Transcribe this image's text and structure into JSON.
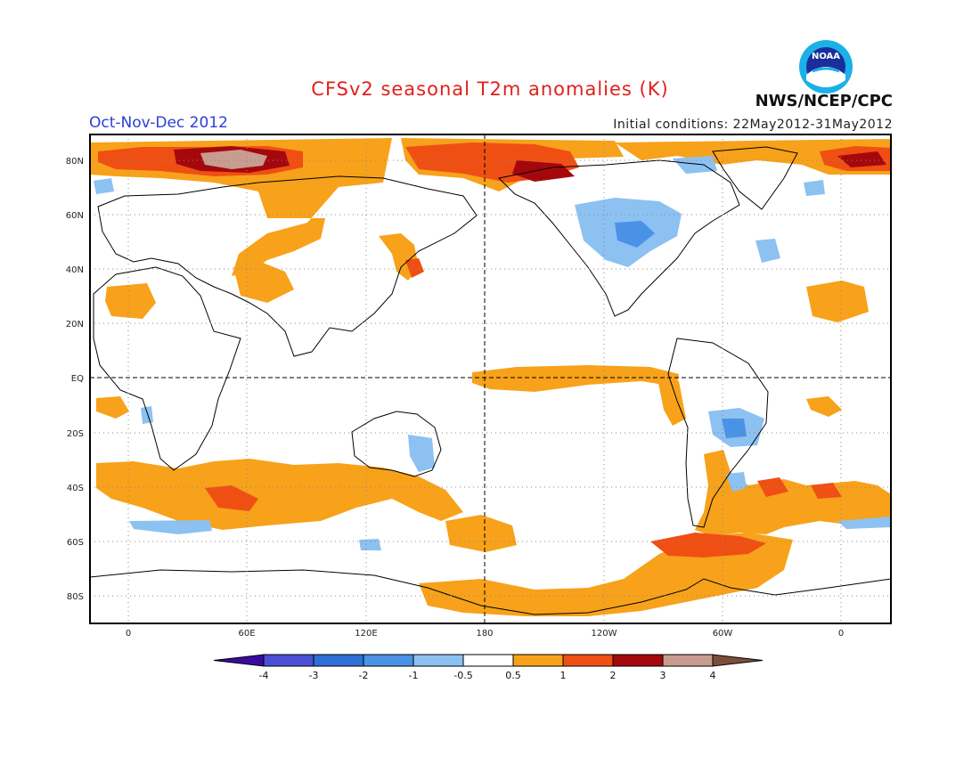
{
  "title": "CFSv2 seasonal T2m anomalies (K)",
  "period": "Oct-Nov-Dec 2012",
  "initial_conditions": "Initial conditions: 22May2012-31May2012",
  "agency": "NWS/NCEP/CPC",
  "logo_text": "NOAA",
  "lat_labels": [
    "80N",
    "60N",
    "40N",
    "20N",
    "EQ",
    "20S",
    "40S",
    "60S",
    "80S"
  ],
  "lon_labels": [
    "0",
    "60E",
    "120E",
    "180",
    "120W",
    "60W",
    "0"
  ],
  "colorbar": {
    "colors": [
      "#3a0a9e",
      "#4a4fd6",
      "#2e6fd8",
      "#4a92e6",
      "#8cc1f2",
      "#ffffff",
      "#f7a21a",
      "#f04f14",
      "#a5080c",
      "#c89c8e",
      "#7b4e3c"
    ],
    "tick_labels": [
      "-4",
      "-3",
      "-2",
      "-1",
      "-0.5",
      "0.5",
      "1",
      "2",
      "3",
      "4"
    ]
  },
  "colors": {
    "title": "#e0201a",
    "period": "#2b3fd6",
    "warm_weak": "#f7a21a",
    "warm_mod": "#f04f14",
    "warm_strong": "#a5080c",
    "warm_extreme": "#c89c8e",
    "cool_weak": "#8cc1f2",
    "cool_mod": "#4a92e6"
  }
}
